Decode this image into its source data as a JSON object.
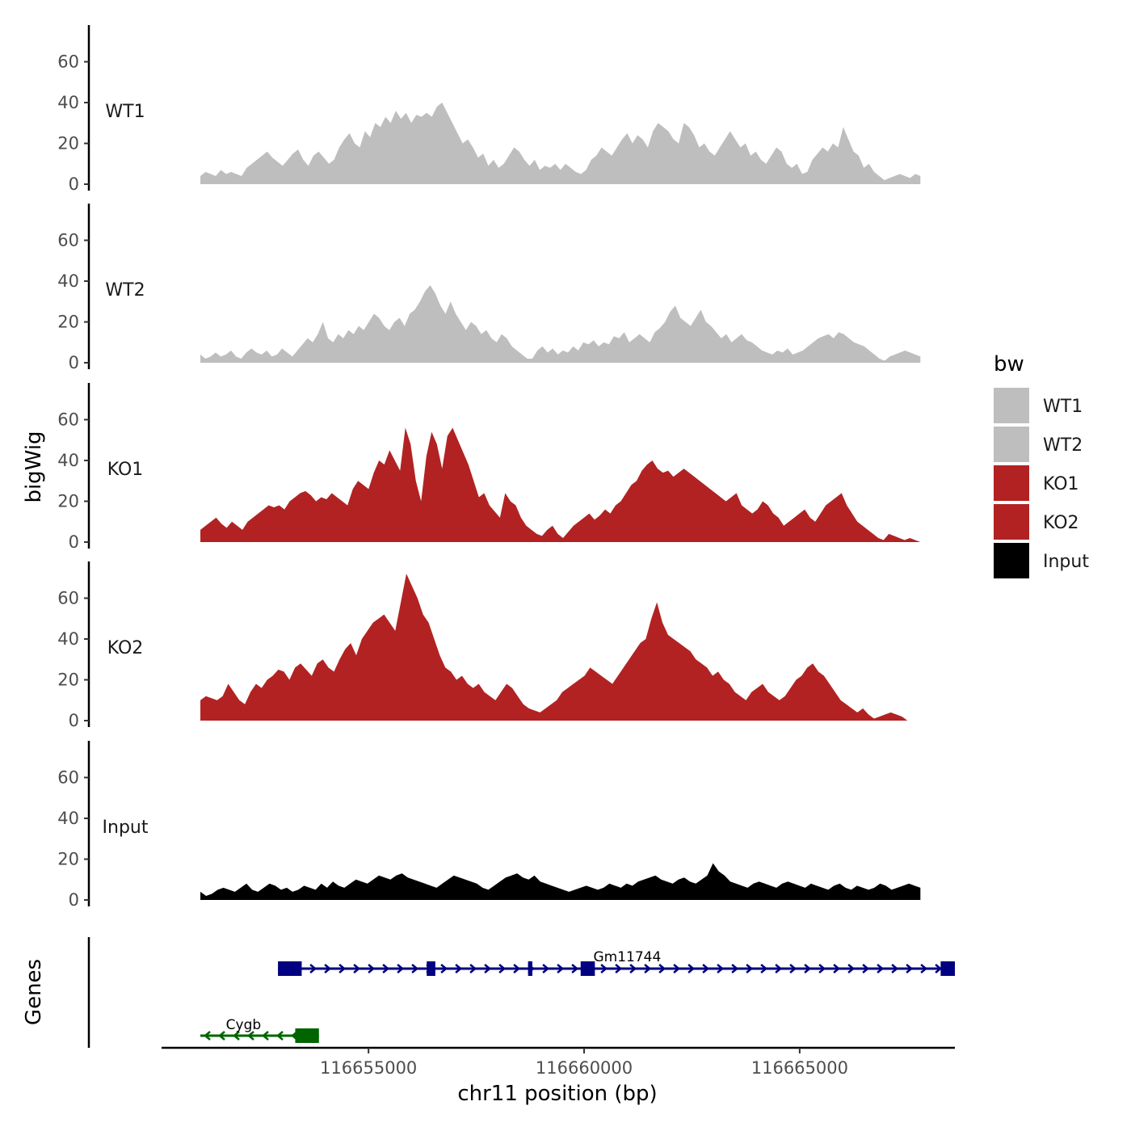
{
  "chart_data": {
    "type": "area",
    "chromosome": "chr11",
    "xlabel": "chr11 position (bp)",
    "ylabel": "bigWig",
    "genes_track_label": "Genes",
    "xlim": [
      116650200,
      116668600
    ],
    "x_range_data": [
      116651100,
      116667800
    ],
    "x_ticks": [
      116655000,
      116660000,
      116665000
    ],
    "x_tick_labels": [
      "116655000",
      "116660000",
      "116665000"
    ],
    "ylim": [
      0,
      78
    ],
    "y_ticks": [
      0,
      20,
      40,
      60
    ],
    "y_tick_labels": [
      "0",
      "20",
      "40",
      "60"
    ],
    "legend": {
      "title": "bw",
      "entries": [
        {
          "label": "WT1",
          "color": "#bebebe"
        },
        {
          "label": "WT2",
          "color": "#bebebe"
        },
        {
          "label": "KO1",
          "color": "#b22222"
        },
        {
          "label": "KO2",
          "color": "#b22222"
        },
        {
          "label": "Input",
          "color": "#000000"
        }
      ]
    },
    "series": [
      {
        "name": "WT1",
        "color": "#bebebe",
        "values": [
          4,
          6,
          5,
          4,
          7,
          5,
          6,
          5,
          4,
          8,
          10,
          12,
          14,
          16,
          13,
          11,
          9,
          12,
          15,
          17,
          12,
          9,
          14,
          16,
          13,
          10,
          12,
          18,
          22,
          25,
          20,
          18,
          26,
          23,
          30,
          28,
          33,
          30,
          36,
          32,
          35,
          30,
          34,
          33,
          35,
          33,
          38,
          40,
          35,
          30,
          25,
          20,
          22,
          18,
          13,
          15,
          9,
          12,
          8,
          10,
          14,
          18,
          16,
          12,
          9,
          12,
          7,
          9,
          8,
          10,
          7,
          10,
          8,
          6,
          5,
          7,
          12,
          14,
          18,
          16,
          14,
          18,
          22,
          25,
          20,
          24,
          22,
          18,
          26,
          30,
          28,
          26,
          22,
          20,
          30,
          28,
          24,
          18,
          20,
          16,
          14,
          18,
          22,
          26,
          22,
          18,
          20,
          14,
          16,
          12,
          10,
          14,
          18,
          16,
          10,
          8,
          10,
          5,
          6,
          12,
          15,
          18,
          16,
          20,
          18,
          28,
          22,
          16,
          14,
          8,
          10,
          6,
          4,
          2,
          3,
          4,
          5,
          4,
          3,
          5,
          4
        ],
        "step_x": [
          116651100,
          116667800
        ]
      },
      {
        "name": "WT2",
        "color": "#bebebe",
        "values": [
          4,
          2,
          3,
          5,
          3,
          4,
          6,
          3,
          2,
          5,
          7,
          5,
          4,
          6,
          3,
          4,
          7,
          5,
          3,
          6,
          9,
          12,
          10,
          14,
          20,
          12,
          10,
          14,
          12,
          16,
          14,
          18,
          16,
          20,
          24,
          22,
          18,
          16,
          20,
          22,
          18,
          24,
          26,
          30,
          35,
          38,
          34,
          28,
          24,
          30,
          24,
          20,
          16,
          20,
          18,
          14,
          16,
          12,
          10,
          14,
          12,
          8,
          6,
          4,
          2,
          2,
          6,
          8,
          5,
          7,
          4,
          6,
          5,
          8,
          6,
          10,
          9,
          11,
          8,
          10,
          9,
          13,
          12,
          15,
          10,
          12,
          14,
          12,
          10,
          15,
          17,
          20,
          25,
          28,
          22,
          20,
          18,
          22,
          26,
          20,
          18,
          15,
          12,
          14,
          10,
          12,
          14,
          11,
          10,
          8,
          6,
          5,
          4,
          6,
          5,
          7,
          4,
          5,
          6,
          8,
          10,
          12,
          13,
          14,
          12,
          15,
          14,
          12,
          10,
          9,
          8,
          6,
          4,
          2,
          1,
          3,
          4,
          5,
          6,
          5,
          4,
          3
        ],
        "step_x": [
          116651100,
          116667800
        ]
      },
      {
        "name": "KO1",
        "color": "#b22222",
        "values": [
          6,
          8,
          10,
          12,
          9,
          7,
          10,
          8,
          6,
          10,
          12,
          14,
          16,
          18,
          17,
          18,
          16,
          20,
          22,
          24,
          25,
          23,
          20,
          22,
          21,
          24,
          22,
          20,
          18,
          26,
          30,
          28,
          26,
          34,
          40,
          38,
          45,
          40,
          35,
          56,
          48,
          30,
          20,
          42,
          54,
          48,
          36,
          52,
          56,
          50,
          44,
          38,
          30,
          22,
          24,
          18,
          15,
          12,
          24,
          20,
          18,
          12,
          8,
          6,
          4,
          3,
          6,
          8,
          4,
          2,
          5,
          8,
          10,
          12,
          14,
          11,
          13,
          16,
          14,
          18,
          20,
          24,
          28,
          30,
          35,
          38,
          40,
          36,
          34,
          35,
          32,
          34,
          36,
          34,
          32,
          30,
          28,
          26,
          24,
          22,
          20,
          22,
          24,
          18,
          16,
          14,
          16,
          20,
          18,
          14,
          12,
          8,
          10,
          12,
          14,
          16,
          12,
          10,
          14,
          18,
          20,
          22,
          24,
          18,
          14,
          10,
          8,
          6,
          4,
          2,
          1,
          4,
          3,
          2,
          1,
          2,
          1,
          0
        ],
        "step_x": [
          116651100,
          116667800
        ]
      },
      {
        "name": "KO2",
        "color": "#b22222",
        "values": [
          10,
          12,
          11,
          10,
          12,
          18,
          14,
          10,
          8,
          14,
          18,
          16,
          20,
          22,
          25,
          24,
          20,
          26,
          28,
          25,
          22,
          28,
          30,
          26,
          24,
          30,
          35,
          38,
          32,
          40,
          44,
          48,
          50,
          52,
          48,
          44,
          58,
          72,
          66,
          60,
          52,
          48,
          40,
          32,
          26,
          24,
          20,
          22,
          18,
          16,
          18,
          14,
          12,
          10,
          14,
          18,
          16,
          12,
          8,
          6,
          5,
          4,
          6,
          8,
          10,
          14,
          16,
          18,
          20,
          22,
          26,
          24,
          22,
          20,
          18,
          22,
          26,
          30,
          34,
          38,
          40,
          50,
          58,
          48,
          42,
          40,
          38,
          36,
          34,
          30,
          28,
          26,
          22,
          24,
          20,
          18,
          14,
          12,
          10,
          14,
          16,
          18,
          14,
          12,
          10,
          12,
          16,
          20,
          22,
          26,
          28,
          24,
          22,
          18,
          14,
          10,
          8,
          6,
          4,
          6,
          3,
          1,
          2,
          3,
          4,
          3,
          2,
          0
        ],
        "step_x": [
          116651100,
          116667500
        ]
      },
      {
        "name": "Input",
        "color": "#000000",
        "values": [
          4,
          2,
          3,
          5,
          6,
          5,
          4,
          6,
          8,
          5,
          4,
          6,
          8,
          7,
          5,
          6,
          4,
          5,
          7,
          6,
          5,
          8,
          6,
          9,
          7,
          6,
          8,
          10,
          9,
          8,
          10,
          12,
          11,
          10,
          12,
          13,
          11,
          10,
          9,
          8,
          7,
          6,
          8,
          10,
          12,
          11,
          10,
          9,
          8,
          6,
          5,
          7,
          9,
          11,
          12,
          13,
          11,
          10,
          12,
          9,
          8,
          7,
          6,
          5,
          4,
          5,
          6,
          7,
          6,
          5,
          6,
          8,
          7,
          6,
          8,
          7,
          9,
          10,
          11,
          12,
          10,
          9,
          8,
          10,
          11,
          9,
          8,
          10,
          12,
          18,
          14,
          12,
          9,
          8,
          7,
          6,
          8,
          9,
          8,
          7,
          6,
          8,
          9,
          8,
          7,
          6,
          8,
          7,
          6,
          5,
          7,
          8,
          6,
          5,
          7,
          6,
          5,
          6,
          8,
          7,
          5,
          6,
          7,
          8,
          7,
          6
        ],
        "step_x": [
          116651100,
          116667800
        ]
      }
    ],
    "genes": [
      {
        "name": "Gm11744",
        "strand": "+",
        "color": "#000080",
        "start": 116652900,
        "end": 116668600,
        "exons": [
          [
            116652900,
            116653450
          ],
          [
            116656350,
            116656550
          ],
          [
            116658700,
            116658800
          ],
          [
            116659920,
            116660250
          ],
          [
            116668270,
            116668600
          ]
        ]
      },
      {
        "name": "Cygb",
        "strand": "-",
        "color": "#006400",
        "start": 116651100,
        "end": 116653850,
        "exons": [
          [
            116653300,
            116653850
          ]
        ]
      }
    ]
  }
}
